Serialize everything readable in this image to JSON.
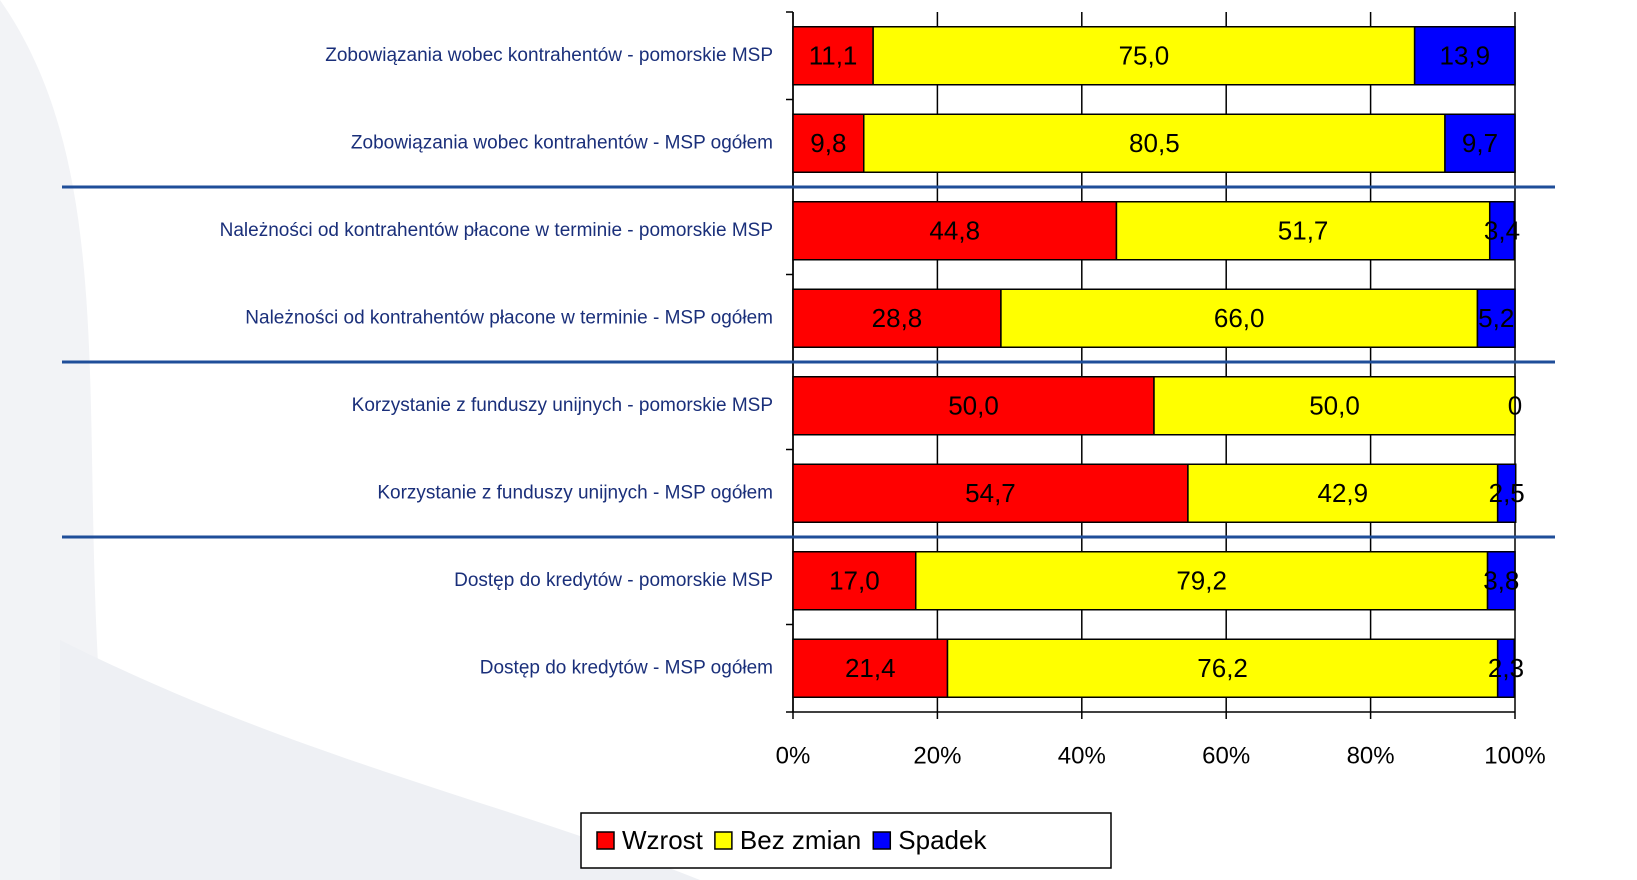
{
  "chart_data": {
    "type": "stacked_barh",
    "categories": [
      "Zobowiązania wobec kontrahentów - pomorskie MSP",
      "Zobowiązania wobec kontrahentów - MSP ogółem",
      "Należności od kontrahentów płacone w terminie - pomorskie  MSP",
      "Należności od kontrahentów płacone w terminie - MSP ogółem",
      "Korzystanie z funduszy unijnych - pomorskie MSP",
      "Korzystanie z funduszy unijnych - MSP ogółem",
      "Dostęp do kredytów - pomorskie MSP",
      "Dostęp do kredytów - MSP ogółem"
    ],
    "series": [
      {
        "name": "Wzrost",
        "color": "#ff0000",
        "values": [
          11.1,
          9.8,
          44.8,
          28.8,
          50.0,
          54.7,
          17.0,
          21.4
        ],
        "value_labels": [
          "11,1",
          "9,8",
          "44,8",
          "28,8",
          "50,0",
          "54,7",
          "17,0",
          "21,4"
        ]
      },
      {
        "name": "Bez zmian",
        "color": "#ffff00",
        "values": [
          75.0,
          80.5,
          51.7,
          66.0,
          50.0,
          42.9,
          79.2,
          76.2
        ],
        "value_labels": [
          "75,0",
          "80,5",
          "51,7",
          "66,0",
          "50,0",
          "42,9",
          "79,2",
          "76,2"
        ]
      },
      {
        "name": "Spadek",
        "color": "#0000ff",
        "values": [
          13.9,
          9.7,
          3.4,
          5.2,
          0,
          2.5,
          3.8,
          2.3
        ],
        "value_labels": [
          "13,9",
          "9,7",
          "3,4",
          "5,2",
          "0",
          "2,5",
          "3,8",
          "2,3"
        ]
      }
    ],
    "xlim": [
      0,
      100
    ],
    "xticks": [
      {
        "value": 0,
        "label": "0%"
      },
      {
        "value": 20,
        "label": "20%"
      },
      {
        "value": 40,
        "label": "40%"
      },
      {
        "value": 60,
        "label": "60%"
      },
      {
        "value": 80,
        "label": "80%"
      },
      {
        "value": 100,
        "label": "100%"
      }
    ],
    "grid": true,
    "legend": "bottom"
  }
}
